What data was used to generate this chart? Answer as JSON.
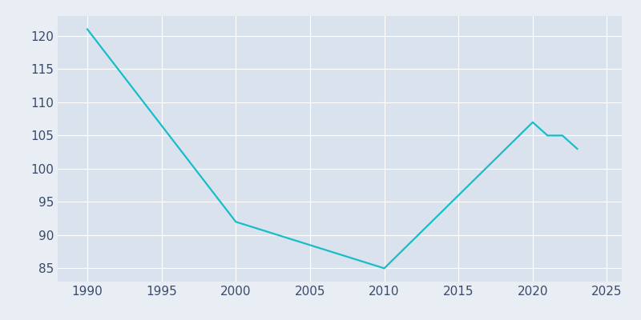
{
  "years": [
    1990,
    2000,
    2010,
    2020,
    2021,
    2022,
    2023
  ],
  "population": [
    121,
    92,
    85,
    107,
    105,
    105,
    103
  ],
  "line_color": "#17BEC8",
  "bg_color": "#E8EEF4",
  "plot_bg_color": "#DAE3ED",
  "xlim": [
    1988,
    2026
  ],
  "ylim": [
    83,
    123
  ],
  "yticks": [
    85,
    90,
    95,
    100,
    105,
    110,
    115,
    120
  ],
  "xticks": [
    1990,
    1995,
    2000,
    2005,
    2010,
    2015,
    2020,
    2025
  ],
  "grid_color": "#FFFFFF",
  "tick_color": "#3A4A6B",
  "line_width": 1.6,
  "tick_fontsize": 11
}
